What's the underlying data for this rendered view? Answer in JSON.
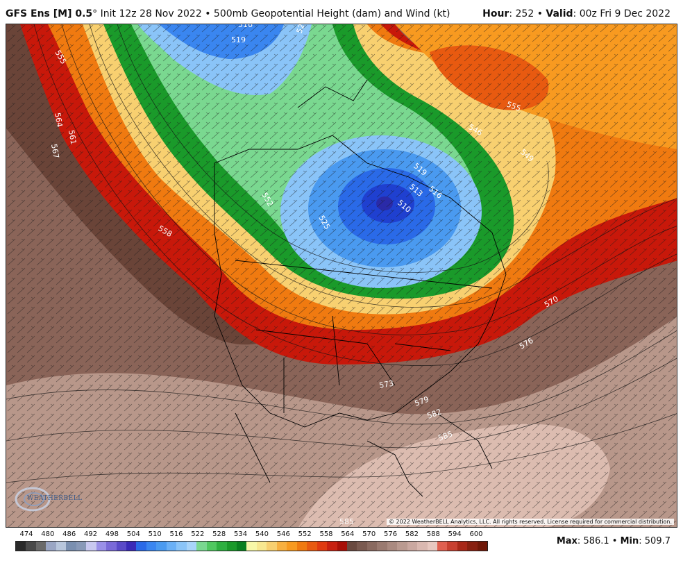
{
  "header": {
    "model": "GFS Ens [M] 0.5",
    "degree": "°",
    "init": "Init 12z 28 Nov 2022",
    "sep": "•",
    "product": "500mb Geopotential Height (dam) and Wind (kt)",
    "hour_label": "Hour",
    "hour_value": "252",
    "valid_label": "Valid",
    "valid_value": "00z Fri 9 Dec 2022"
  },
  "contour_labels": [
    "516",
    "519",
    "528",
    "555",
    "564",
    "561",
    "567",
    "558",
    "510",
    "513",
    "516",
    "519",
    "525",
    "552",
    "555",
    "546",
    "549",
    "570",
    "576",
    "573",
    "579",
    "582",
    "585",
    "585"
  ],
  "legend": {
    "ticks": [
      "474",
      "480",
      "486",
      "492",
      "498",
      "504",
      "510",
      "516",
      "522",
      "528",
      "534",
      "540",
      "546",
      "552",
      "558",
      "564",
      "570",
      "576",
      "582",
      "588",
      "594",
      "600"
    ],
    "colors": [
      "#2a2a2a",
      "#4a4a4a",
      "#6a6a6a",
      "#9aa6c4",
      "#b8c6dc",
      "#7a8fb0",
      "#8899b8",
      "#c8c8f0",
      "#9a90e8",
      "#7a6ad8",
      "#5a4ac8",
      "#3a2ab8",
      "#2a6ae8",
      "#3a86f0",
      "#4a9af0",
      "#6ab0f6",
      "#8ac4f8",
      "#a8d4fa",
      "#7ad890",
      "#50c860",
      "#2eb040",
      "#1a9a2a",
      "#0a8020",
      "#f8f8a8",
      "#f8e890",
      "#f8d070",
      "#f8b040",
      "#f89a20",
      "#f07a10",
      "#e85a10",
      "#e03a10",
      "#c82010",
      "#a81008",
      "#6a4a40",
      "#7a5a50",
      "#8a6a60",
      "#9a7a70",
      "#aa8a80",
      "#ba9a90",
      "#caa8a0",
      "#dab8b0",
      "#e8c8c0",
      "#e06050",
      "#c84030",
      "#a82818",
      "#882010",
      "#701808"
    ],
    "max_label": "Max",
    "max_value": "586.1",
    "min_label": "Min",
    "min_value": "509.7"
  },
  "copyright": "© 2022 WeatherBELL Analytics, LLC. All rights reserved. License required for commercial distribution.",
  "logo_text": "WEATHERBELL"
}
